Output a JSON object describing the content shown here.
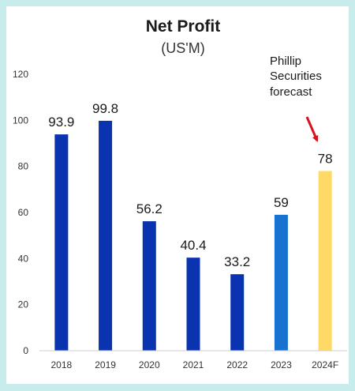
{
  "chart_data": {
    "type": "bar",
    "title": "Net Profit",
    "subtitle": "(US'M)",
    "categories": [
      "2018",
      "2019",
      "2020",
      "2021",
      "2022",
      "2023",
      "2024F"
    ],
    "values": [
      93.9,
      99.8,
      56.2,
      40.4,
      33.2,
      59,
      78
    ],
    "data_labels": [
      "93.9",
      "99.8",
      "56.2",
      "40.4",
      "33.2",
      "59",
      "78"
    ],
    "bar_colors": [
      "#0a33b0",
      "#0a33b0",
      "#0a33b0",
      "#0a33b0",
      "#0a33b0",
      "#1872d0",
      "#ffd966"
    ],
    "ylim": [
      0,
      120
    ],
    "yticks": [
      0,
      20,
      40,
      60,
      80,
      100,
      120
    ],
    "xlabel": "",
    "ylabel": "",
    "grid": false,
    "legend": "none",
    "annotation": {
      "lines": [
        "Phillip",
        "Securities",
        "forecast"
      ],
      "arrow_color": "#d9121f",
      "target_category": "2024F"
    }
  }
}
